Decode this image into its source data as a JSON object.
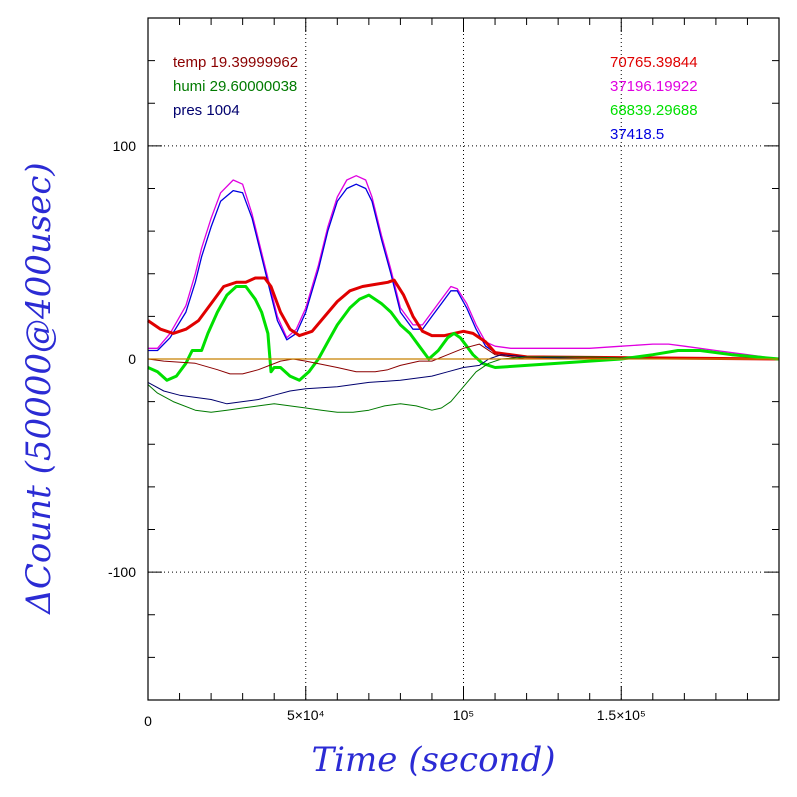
{
  "chart_data": {
    "type": "line",
    "xlabel": "Time (second)",
    "ylabel": "ΔCount (50000@400usec)",
    "xlim": [
      0,
      200000
    ],
    "ylim": [
      -160,
      160
    ],
    "x_ticks": [
      {
        "value": 0,
        "label": "0"
      },
      {
        "value": 50000,
        "label": "5×10⁴"
      },
      {
        "value": 100000,
        "label": "10⁵"
      },
      {
        "value": 150000,
        "label": "1.5×10⁵"
      }
    ],
    "y_ticks": [
      {
        "value": 100,
        "label": "100"
      },
      {
        "value": 0,
        "label": "0"
      },
      {
        "value": -100,
        "label": "-100"
      }
    ],
    "grid": true,
    "legend_left": [
      {
        "text": "temp 19.39999962",
        "color": "#8b0000"
      },
      {
        "text": "humi 29.60000038",
        "color": "#007a00"
      },
      {
        "text": "pres 1004",
        "color": "#00006e"
      }
    ],
    "legend_right": [
      {
        "text": "70765.39844",
        "color": "#e00000"
      },
      {
        "text": "37196.19922",
        "color": "#e000e0"
      },
      {
        "text": "68839.29688",
        "color": "#00e000"
      },
      {
        "text": "37418.5",
        "color": "#0000e0"
      }
    ],
    "series": [
      {
        "color": "#e000e0",
        "width": 1.3,
        "x": [
          0,
          3000,
          7000,
          12000,
          15000,
          17000,
          20000,
          23000,
          27000,
          30000,
          33000,
          36000,
          38000,
          41000,
          44000,
          47000,
          50000,
          54000,
          57000,
          60000,
          63000,
          66000,
          69000,
          71000,
          74000,
          77000,
          80000,
          84000,
          87000,
          90000,
          93000,
          96000,
          98000,
          101000,
          104000,
          107000,
          110000,
          115000,
          120000,
          130000,
          140000,
          150000,
          160000,
          165000,
          170000,
          180000,
          190000,
          200000
        ],
        "y": [
          5,
          5,
          12,
          25,
          40,
          52,
          66,
          78,
          84,
          82,
          68,
          50,
          38,
          20,
          10,
          14,
          24,
          44,
          62,
          76,
          84,
          86,
          84,
          76,
          58,
          42,
          24,
          16,
          16,
          22,
          28,
          34,
          33,
          26,
          16,
          8,
          6,
          5,
          5,
          5,
          5,
          6,
          7,
          7,
          6,
          4,
          2,
          0
        ]
      },
      {
        "color": "#0000e0",
        "width": 1.3,
        "x": [
          0,
          3000,
          7000,
          12000,
          15000,
          17000,
          20000,
          23000,
          27000,
          30000,
          33000,
          36000,
          38000,
          41000,
          44000,
          47000,
          50000,
          54000,
          57000,
          60000,
          63000,
          66000,
          69000,
          71000,
          74000,
          77000,
          80000,
          84000,
          87000,
          90000,
          93000,
          96000,
          98000,
          101000,
          104000,
          107000,
          110000,
          115000,
          120000,
          200000
        ],
        "y": [
          4,
          4,
          10,
          22,
          36,
          48,
          62,
          74,
          79,
          78,
          66,
          48,
          36,
          18,
          9,
          12,
          22,
          42,
          60,
          74,
          80,
          82,
          80,
          74,
          56,
          40,
          22,
          14,
          14,
          20,
          26,
          32,
          32,
          24,
          14,
          6,
          3,
          2,
          1,
          0
        ]
      },
      {
        "color": "#e00000",
        "width": 3,
        "x": [
          0,
          4000,
          8000,
          12000,
          16000,
          20000,
          24000,
          28000,
          31000,
          34000,
          37000,
          39000,
          42000,
          45000,
          48000,
          52000,
          56000,
          60000,
          64000,
          68000,
          72000,
          76000,
          78000,
          81000,
          84000,
          87000,
          90000,
          94000,
          97000,
          100000,
          103000,
          107000,
          110000,
          115000,
          120000,
          200000
        ],
        "y": [
          18,
          14,
          12,
          14,
          18,
          26,
          34,
          36,
          36,
          38,
          38,
          34,
          22,
          14,
          11,
          13,
          20,
          27,
          32,
          34,
          35,
          36,
          37,
          30,
          20,
          13,
          11,
          11,
          12,
          13,
          12,
          8,
          3,
          2,
          1,
          0
        ]
      },
      {
        "color": "#00e000",
        "width": 3,
        "x": [
          0,
          3000,
          6000,
          9000,
          12000,
          14000,
          17000,
          19000,
          22000,
          25000,
          28000,
          31000,
          34000,
          36000,
          38000,
          39000,
          40000,
          42000,
          45000,
          48000,
          51000,
          54000,
          57000,
          60000,
          64000,
          67000,
          70000,
          74000,
          77000,
          80000,
          83000,
          86000,
          89000,
          92000,
          95000,
          97000,
          99000,
          101000,
          103000,
          106000,
          110000,
          120000,
          130000,
          140000,
          150000,
          160000,
          168000,
          175000,
          185000,
          200000
        ],
        "y": [
          -4,
          -6,
          -10,
          -8,
          -2,
          4,
          4,
          12,
          22,
          30,
          34,
          34,
          28,
          22,
          12,
          -6,
          -4,
          -4,
          -8,
          -10,
          -6,
          0,
          8,
          16,
          24,
          28,
          30,
          26,
          22,
          16,
          12,
          6,
          0,
          4,
          10,
          12,
          10,
          6,
          2,
          -2,
          -4,
          -3,
          -2,
          -1,
          0,
          2,
          4,
          4,
          2,
          0
        ]
      },
      {
        "color": "#8b0000",
        "width": 1,
        "x": [
          0,
          5000,
          15000,
          22000,
          26000,
          30000,
          35000,
          42000,
          46000,
          50000,
          60000,
          66000,
          72000,
          76000,
          80000,
          86000,
          90000,
          95000,
          100000,
          105000,
          110000,
          115000,
          120000,
          200000
        ],
        "y": [
          0,
          -1,
          -2,
          -5,
          -7,
          -7,
          -5,
          -1,
          0,
          -1,
          -4,
          -6,
          -6,
          -5,
          -3,
          -1,
          -1,
          2,
          5,
          7,
          2,
          1,
          0,
          0
        ]
      },
      {
        "color": "#00006e",
        "width": 1,
        "x": [
          0,
          5000,
          10000,
          15000,
          20000,
          25000,
          30000,
          35000,
          40000,
          45000,
          50000,
          60000,
          70000,
          80000,
          90000,
          95000,
          100000,
          105000,
          108000,
          112000,
          120000,
          140000,
          160000,
          180000,
          200000
        ],
        "y": [
          -11,
          -15,
          -17,
          -18,
          -19,
          -21,
          -20,
          -19,
          -17,
          -15,
          -14,
          -13,
          -11,
          -10,
          -8,
          -6,
          -4,
          -3,
          0,
          2,
          1,
          0,
          0,
          0,
          0
        ]
      },
      {
        "color": "#007a00",
        "width": 1,
        "x": [
          0,
          3000,
          8000,
          15000,
          20000,
          25000,
          30000,
          35000,
          40000,
          45000,
          50000,
          55000,
          60000,
          65000,
          70000,
          75000,
          80000,
          85000,
          90000,
          93000,
          96000,
          100000,
          104000,
          108000,
          112000,
          120000,
          140000,
          160000,
          180000,
          200000
        ],
        "y": [
          -12,
          -16,
          -20,
          -24,
          -25,
          -24,
          -23,
          -22,
          -21,
          -22,
          -23,
          -24,
          -25,
          -25,
          -24,
          -22,
          -21,
          -22,
          -24,
          -23,
          -20,
          -13,
          -6,
          -2,
          0,
          1,
          1,
          0,
          0,
          0
        ]
      },
      {
        "color": "#c88000",
        "width": 1.2,
        "x": [
          0,
          200000
        ],
        "y": [
          0,
          0
        ]
      }
    ]
  }
}
